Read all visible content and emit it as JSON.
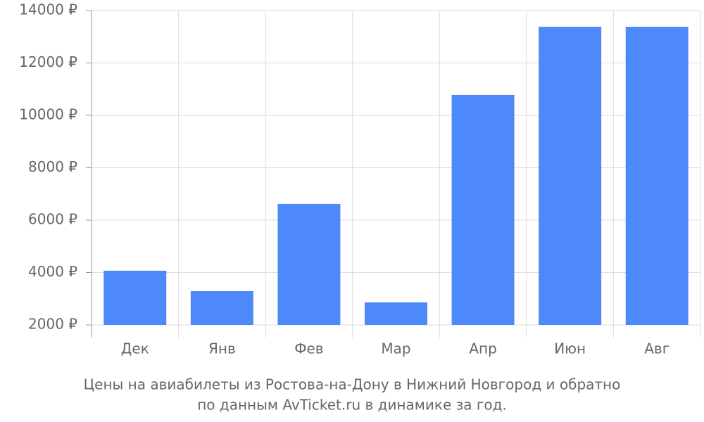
{
  "chart_data": {
    "type": "bar",
    "title": [
      "Цены на авиабилеты из Ростова-на-Дону в Нижний Новгород и обратно",
      "по данным AvTicket.ru в динамике за год."
    ],
    "categories": [
      "Дек",
      "Янв",
      "Фев",
      "Мар",
      "Апр",
      "Июн",
      "Авг"
    ],
    "values": [
      4070,
      3290,
      6620,
      2860,
      10780,
      13380,
      13380
    ],
    "color": "#4d89f9",
    "ylim": [
      2000,
      14000
    ],
    "yticks": [
      {
        "value": 2000,
        "label": "2000 ₽"
      },
      {
        "value": 4000,
        "label": "4000 ₽"
      },
      {
        "value": 6000,
        "label": "6000 ₽"
      },
      {
        "value": 8000,
        "label": "8000 ₽"
      },
      {
        "value": 10000,
        "label": "10000 ₽"
      },
      {
        "value": 12000,
        "label": "12000 ₽"
      },
      {
        "value": 14000,
        "label": "14000 ₽"
      }
    ],
    "grid": true
  }
}
